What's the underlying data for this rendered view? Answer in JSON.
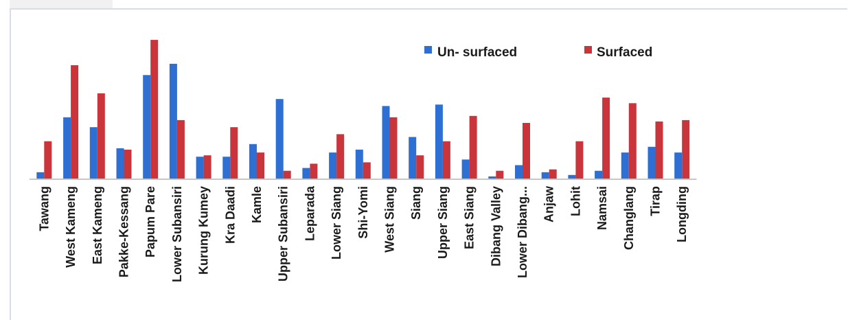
{
  "chart_data": {
    "type": "bar",
    "title": "",
    "xlabel": "",
    "ylabel": "",
    "categories": [
      "Tawang",
      "West Kameng",
      "East Kameng",
      "Pakke-Kessang",
      "Papum Pare",
      "Lower Subansiri",
      "Kurung Kumey",
      "Kra Daadi",
      "Kamle",
      "Upper Subansiri",
      "Leparada",
      "Lower Siang",
      "Shi-Yomi",
      "West Siang",
      "Siang",
      "Upper Siang",
      "East Siang",
      "Dibang Valley",
      "Lower Dibang...",
      "Anjaw",
      "Lohit",
      "Namsai",
      "Changlang",
      "Tirap",
      "Longding"
    ],
    "series": [
      {
        "name": "Un- surfaced",
        "color": "#2e6fd3",
        "values": [
          5,
          44,
          37,
          22,
          74,
          82,
          16,
          16,
          25,
          57,
          8,
          19,
          21,
          52,
          30,
          53,
          14,
          2,
          10,
          5,
          3,
          6,
          19,
          23,
          19
        ]
      },
      {
        "name": "Surfaced",
        "color": "#c9353b",
        "values": [
          27,
          81,
          61,
          21,
          99,
          42,
          17,
          37,
          19,
          6,
          11,
          32,
          12,
          44,
          17,
          27,
          45,
          6,
          40,
          7,
          27,
          58,
          54,
          41,
          42
        ]
      }
    ],
    "ylim": [
      0,
      100
    ],
    "grid": false,
    "legend": "top-right"
  },
  "legend": {
    "unsurfaced_label": "Un- surfaced",
    "surfaced_label": "Surfaced"
  }
}
